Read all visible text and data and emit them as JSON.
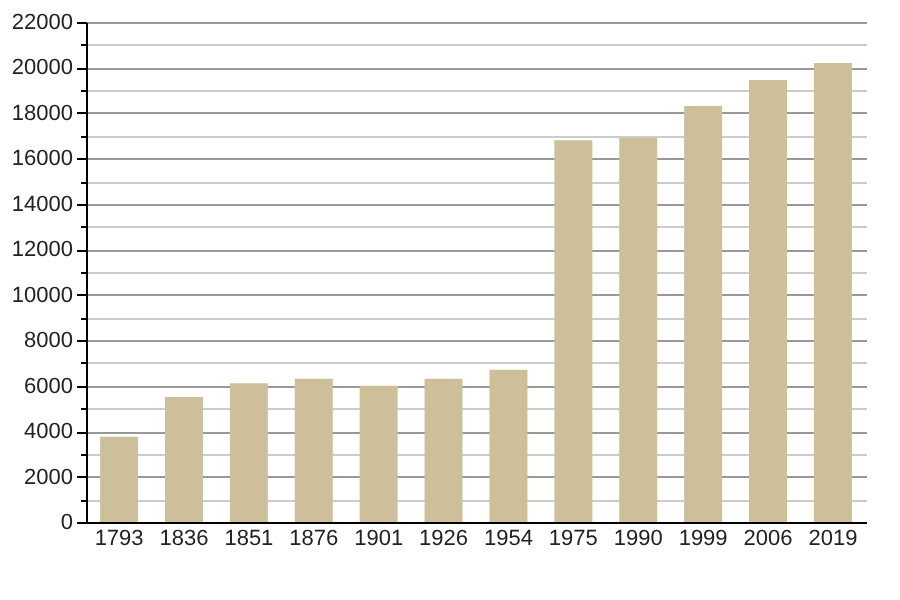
{
  "chart_data": {
    "type": "bar",
    "categories": [
      "1793",
      "1836",
      "1851",
      "1876",
      "1901",
      "1926",
      "1954",
      "1975",
      "1990",
      "1999",
      "2006",
      "2019"
    ],
    "values": [
      3750,
      5500,
      6100,
      6300,
      6000,
      6300,
      6700,
      16800,
      16900,
      18300,
      19450,
      20200
    ],
    "color": "#cdbf9a",
    "ylim": [
      0,
      22000
    ],
    "yticks": [
      0,
      {
        "value": 1000,
        "label": null
      },
      2000,
      {
        "value": 3000,
        "label": null
      },
      4000,
      {
        "value": 5000,
        "label": null
      },
      6000,
      {
        "value": 7000,
        "label": null
      },
      8000,
      {
        "value": 9000,
        "label": null
      },
      10000,
      {
        "value": 11000,
        "label": null
      },
      12000,
      {
        "value": 13000,
        "label": null
      },
      14000,
      {
        "value": 15000,
        "label": null
      },
      16000,
      {
        "value": 17000,
        "label": null
      },
      18000,
      {
        "value": 19000,
        "label": null
      },
      20000,
      {
        "value": 21000,
        "label": null
      },
      22000
    ],
    "grid": true
  }
}
